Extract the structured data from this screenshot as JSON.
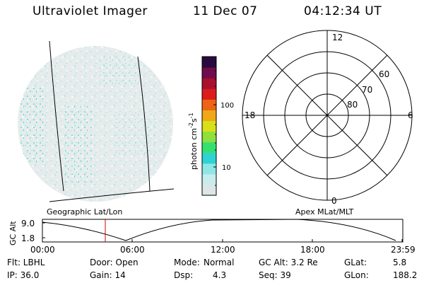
{
  "header": {
    "instrument": "Ultraviolet Imager",
    "date": "11 Dec 07",
    "time": "04:12:34 UT"
  },
  "colorbar": {
    "unit_label": "photon cm",
    "unit_sup1": "-2",
    "unit_s": "s",
    "unit_sup2": "-1",
    "ticks": [
      "100",
      "10"
    ],
    "colors": [
      "#dce6e6",
      "#c8ecec",
      "#8ee6e6",
      "#2fd3d3",
      "#36e070",
      "#8ee03c",
      "#d8e01a",
      "#f0a818",
      "#ee6414",
      "#dc1c1c",
      "#a8102e",
      "#6e0c4c",
      "#2a0a3e"
    ]
  },
  "polar": {
    "mlt_labels": {
      "top": "12",
      "left": "18",
      "right": "6",
      "bottom": "0"
    },
    "lat_labels": [
      "60",
      "70",
      "80"
    ]
  },
  "left_panel": {
    "label": "Geographic Lat/Lon"
  },
  "right_panel": {
    "label": "Apex MLat/MLT"
  },
  "alt_plot": {
    "ylabel": "GC Alt",
    "yticks": [
      "9.0",
      "1.8"
    ],
    "xticks": [
      "00:00",
      "06:00",
      "12:00",
      "18:00",
      "23:59"
    ],
    "cursor_color": "#cc0000"
  },
  "info": {
    "flt": "Flt: LBHL",
    "ip": "IP: 36.0",
    "door": "Door: Open",
    "gain": "Gain: 14",
    "mode_label": "Mode:",
    "mode_value": "Normal",
    "dsp_label": "Dsp:",
    "dsp_value": "4.3",
    "gcalt": "GC Alt: 3.2 Re",
    "seq": "Seq: 39",
    "glat_label": "GLat:",
    "glat_value": "5.8",
    "glon_label": "GLon:",
    "glon_value": "188.2"
  }
}
